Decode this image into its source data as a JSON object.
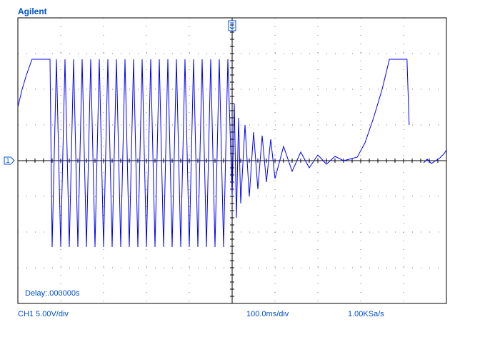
{
  "chart_data": {
    "type": "line",
    "brand": "Agilent",
    "channel_marker": "1",
    "delay": "Delay:.000000s",
    "channel_scale": "CH1 5.00V/div",
    "time_scale": "100.0ms/div",
    "sample_rate": "1.00KSa/s",
    "color": "#0000ff",
    "xlim": [
      0,
      1000
    ],
    "ylim": [
      -20,
      20
    ],
    "x": [
      0,
      10,
      20,
      33,
      50,
      75,
      80,
      90,
      100,
      110,
      120,
      130,
      140,
      150,
      160,
      170,
      180,
      190,
      200,
      210,
      220,
      230,
      240,
      250,
      260,
      270,
      280,
      290,
      300,
      310,
      320,
      330,
      340,
      350,
      360,
      370,
      380,
      390,
      400,
      410,
      420,
      430,
      440,
      450,
      460,
      470,
      480,
      490,
      500,
      505,
      510,
      515,
      520,
      530,
      540,
      550,
      560,
      570,
      580,
      590,
      600,
      620,
      640,
      660,
      680,
      700,
      720,
      740,
      760,
      780,
      792,
      810,
      830,
      850,
      867,
      908,
      913,
      930,
      947,
      955,
      965,
      975,
      985,
      995,
      1000
    ],
    "values": [
      7.5,
      10,
      12,
      14.2,
      14.2,
      14.2,
      -12.1,
      14.2,
      -12.1,
      14.2,
      -12.1,
      14.2,
      -12.1,
      14.2,
      -12.1,
      14.2,
      -12.1,
      14.2,
      -12.1,
      14.2,
      -12.1,
      14.2,
      -12.1,
      14.2,
      -12.1,
      14.2,
      -12.1,
      14.2,
      -12.1,
      14.2,
      -12.1,
      14.2,
      -12.1,
      14.2,
      -12.1,
      14.2,
      -12.1,
      14.2,
      -12.1,
      14.2,
      -12.1,
      14.2,
      -12.1,
      14.2,
      -12.1,
      14.2,
      -12.1,
      14.2,
      -5,
      8,
      -8,
      6,
      -6,
      5,
      -5,
      4,
      -4,
      3.5,
      -3,
      3,
      -2.5,
      2,
      -1.5,
      1.2,
      -1,
      0.8,
      -0.5,
      0.6,
      0,
      0.3,
      0.5,
      2.5,
      6,
      10,
      14.2,
      14.2,
      5,
      null,
      -0.3,
      0.2,
      -0.4,
      0,
      0.4,
      1,
      1.5
    ]
  }
}
